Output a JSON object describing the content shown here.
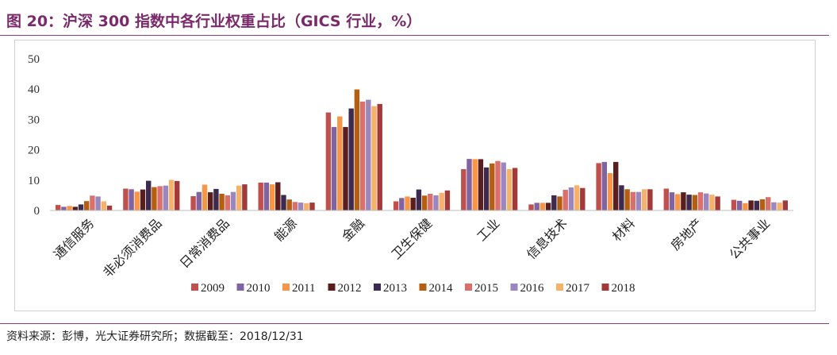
{
  "figure": {
    "title": "图 20：沪深 300 指数中各行业权重占比（GICS 行业，%）",
    "source": "资料来源：彭博，光大证券研究所；数据截至：2018/12/31"
  },
  "colors": [
    "#c0504d",
    "#8064a2",
    "#f79646",
    "#5a1e1e",
    "#3d2b4f",
    "#b35e10",
    "#d9706b",
    "#9b87be",
    "#f6b26b",
    "#a33a3a"
  ],
  "chart_data": {
    "type": "bar",
    "title": "",
    "xlabel": "",
    "ylabel": "",
    "ylim": [
      0,
      50
    ],
    "yticks": [
      0,
      10,
      20,
      30,
      40,
      50
    ],
    "grid": false,
    "legend_position": "bottom",
    "categories": [
      "通信服务",
      "非必须消费品",
      "日常消费品",
      "能源",
      "金融",
      "卫生保健",
      "工业",
      "信息技术",
      "材料",
      "房地产",
      "公共事业"
    ],
    "series": [
      {
        "name": "2009",
        "values": [
          1.8,
          7.2,
          4.7,
          9.2,
          32.3,
          3.0,
          13.6,
          2.0,
          15.6,
          7.2,
          3.5
        ]
      },
      {
        "name": "2010",
        "values": [
          1.2,
          7.0,
          6.1,
          9.2,
          27.5,
          4.1,
          17.0,
          2.5,
          16.0,
          6.0,
          3.2
        ]
      },
      {
        "name": "2011",
        "values": [
          1.5,
          6.2,
          8.5,
          8.6,
          31.0,
          4.6,
          16.9,
          2.5,
          12.3,
          5.4,
          2.4
        ]
      },
      {
        "name": "2012",
        "values": [
          1.2,
          6.9,
          6.0,
          9.3,
          27.5,
          4.2,
          16.9,
          2.5,
          16.0,
          6.0,
          3.3
        ]
      },
      {
        "name": "2013",
        "values": [
          2.0,
          9.8,
          7.1,
          5.1,
          33.6,
          6.9,
          14.2,
          5.0,
          8.3,
          5.2,
          3.2
        ]
      },
      {
        "name": "2014",
        "values": [
          3.1,
          7.7,
          5.5,
          3.6,
          39.9,
          4.9,
          15.5,
          4.6,
          7.0,
          5.1,
          3.7
        ]
      },
      {
        "name": "2015",
        "values": [
          4.9,
          8.0,
          5.0,
          2.8,
          35.9,
          5.5,
          16.3,
          6.8,
          6.1,
          6.0,
          4.4
        ]
      },
      {
        "name": "2016",
        "values": [
          4.6,
          8.2,
          6.1,
          2.6,
          36.5,
          5.0,
          15.8,
          7.6,
          6.1,
          5.6,
          2.7
        ]
      },
      {
        "name": "2017",
        "values": [
          3.0,
          10.1,
          8.2,
          2.4,
          34.4,
          5.8,
          13.6,
          8.3,
          7.0,
          5.2,
          2.6
        ]
      },
      {
        "name": "2018",
        "values": [
          1.6,
          9.7,
          8.6,
          2.6,
          35.1,
          6.6,
          14.0,
          7.4,
          7.0,
          4.6,
          3.3
        ]
      }
    ]
  }
}
